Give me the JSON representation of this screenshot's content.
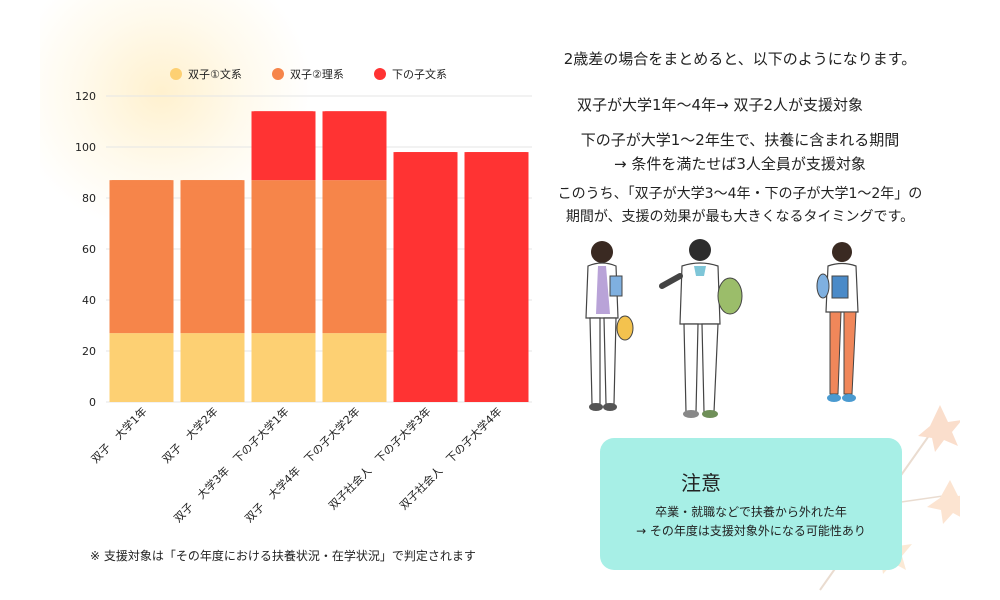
{
  "chart_data": {
    "type": "bar",
    "stacked": true,
    "categories": [
      "双子　大学1年",
      "双子　大学2年",
      "双子　大学3年　下の子大学1年",
      "双子　大学4年　下の子大学2年",
      "双子社会人　下の子大学3年",
      "双子社会人　下の子大学4年"
    ],
    "series": [
      {
        "name": "双子①文系",
        "color": "#fdd073",
        "values": [
          27,
          27,
          27,
          27,
          0,
          0
        ]
      },
      {
        "name": "双子②理系",
        "color": "#f6854a",
        "values": [
          60,
          60,
          60,
          60,
          0,
          0
        ]
      },
      {
        "name": "下の子文系",
        "color": "#ff3333",
        "values": [
          0,
          0,
          27,
          27,
          98,
          98
        ]
      }
    ],
    "ylim": [
      0,
      120
    ],
    "yticks": [
      "0",
      "20",
      "40",
      "60",
      "80",
      "100",
      "120"
    ],
    "grid": true,
    "legend": "top-center"
  },
  "text": {
    "summary_intro": "2歳差の場合をまとめると、以下のようになります。",
    "summary_line1": "双子が大学1年〜4年→ 双子2人が支援対象",
    "summary_line2": "下の子が大学1〜2年生で、扶養に含まれる期間",
    "summary_line3": "→ 条件を満たせば3人全員が支援対象",
    "summary_line4": "このうち、「双子が大学3〜4年・下の子が大学1〜2年」の",
    "summary_line5": "期間が、支援の効果が最も大きくなるタイミングです。",
    "footnote": "※ 支援対象は「その年度における扶養状況・在学状況」で判定されます",
    "note_title": "注意",
    "note_line1": "卒業・就職などで扶養から外れた年",
    "note_line2": "→ その年度は支援対象外になる可能性あり"
  },
  "colors": {
    "grid": "#e6e6e6",
    "axis_text": "#222222",
    "note_background": "#a7efe6"
  }
}
